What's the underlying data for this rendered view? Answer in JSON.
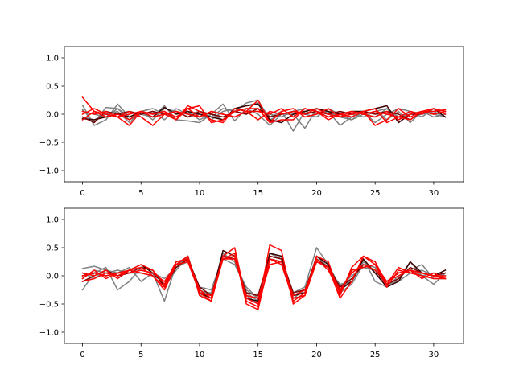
{
  "chart_data": [
    {
      "type": "line",
      "xlim": [
        -1.55,
        32.55
      ],
      "ylim": [
        -1.2,
        1.2
      ],
      "xticks": [
        0,
        5,
        10,
        15,
        20,
        25,
        30
      ],
      "yticks": [
        -1.0,
        -0.5,
        0.0,
        0.5,
        1.0
      ],
      "xtick_labels": [
        "0",
        "5",
        "10",
        "15",
        "20",
        "25",
        "30"
      ],
      "ytick_labels": [
        "−1.0",
        "−0.5",
        "0.0",
        "0.5",
        "1.0"
      ],
      "colors": [
        "#808080",
        "#808080",
        "#808080",
        "#808080",
        "#3a0000",
        "#7a0000",
        "#ff0000",
        "#ff0000",
        "#ff0000",
        "#ff0000"
      ],
      "series": [
        {
          "values": [
            0.16,
            -0.2,
            -0.1,
            0.18,
            -0.05,
            0.05,
            -0.1,
            0.1,
            0.05,
            -0.05,
            0.0,
            -0.1,
            0.05,
            0.1,
            0.15,
            0.2,
            -0.05,
            0.05,
            -0.3,
            0.05,
            0.0,
            0.05,
            -0.2,
            -0.05,
            0.05,
            0.1,
            -0.1,
            0.05,
            -0.15,
            0.05,
            0.0,
            -0.05
          ]
        },
        {
          "values": [
            0.08,
            -0.15,
            0.12,
            0.1,
            -0.1,
            0.0,
            -0.05,
            0.15,
            -0.1,
            -0.12,
            -0.15,
            0.0,
            0.18,
            -0.12,
            0.1,
            0.0,
            -0.2,
            0.0,
            0.0,
            -0.25,
            0.1,
            0.05,
            -0.05,
            -0.1,
            0.05,
            -0.15,
            0.0,
            0.1,
            0.05,
            -0.05,
            0.1,
            -0.05
          ]
        },
        {
          "values": [
            -0.05,
            -0.1,
            0.0,
            0.05,
            -0.15,
            0.05,
            0.1,
            0.0,
            -0.05,
            0.05,
            -0.1,
            0.0,
            -0.1,
            0.05,
            0.2,
            0.25,
            -0.1,
            0.0,
            0.05,
            0.0,
            -0.05,
            0.1,
            0.0,
            -0.1,
            0.0,
            -0.05,
            0.1,
            -0.1,
            0.05,
            0.0,
            0.05,
            -0.05
          ]
        },
        {
          "values": [
            0.05,
            0.0,
            -0.05,
            0.1,
            -0.05,
            0.0,
            0.05,
            -0.1,
            0.1,
            0.0,
            0.05,
            -0.05,
            0.1,
            0.05,
            0.0,
            0.1,
            0.0,
            -0.05,
            0.05,
            0.1,
            0.05,
            -0.05,
            0.05,
            0.0,
            -0.05,
            0.05,
            0.1,
            -0.05,
            0.0,
            0.05,
            -0.05,
            0.0
          ]
        },
        {
          "values": [
            -0.08,
            -0.1,
            -0.05,
            0.0,
            -0.05,
            0.05,
            -0.05,
            0.12,
            0.0,
            0.05,
            0.0,
            -0.05,
            -0.1,
            0.1,
            0.15,
            0.18,
            -0.1,
            -0.15,
            0.0,
            0.05,
            0.1,
            0.05,
            0.0,
            0.05,
            0.05,
            0.1,
            0.15,
            -0.15,
            0.0,
            0.0,
            0.1,
            -0.05
          ]
        },
        {
          "values": [
            -0.05,
            -0.15,
            0.05,
            0.0,
            0.05,
            0.0,
            0.05,
            0.0,
            0.05,
            -0.05,
            0.05,
            0.0,
            -0.05,
            0.05,
            0.0,
            0.1,
            -0.05,
            0.0,
            0.05,
            0.0,
            0.05,
            0.0,
            0.05,
            0.0,
            0.05,
            0.0,
            0.05,
            0.0,
            -0.1,
            0.05,
            0.0,
            0.05
          ]
        },
        {
          "values": [
            0.3,
            0.05,
            0.0,
            -0.05,
            -0.2,
            0.05,
            0.0,
            0.05,
            -0.1,
            0.1,
            0.15,
            -0.15,
            -0.1,
            0.05,
            0.1,
            0.1,
            -0.15,
            -0.1,
            -0.1,
            0.1,
            0.05,
            -0.1,
            0.0,
            -0.05,
            0.05,
            0.1,
            -0.15,
            -0.05,
            -0.1,
            0.05,
            0.05,
            0.08
          ]
        },
        {
          "values": [
            0.0,
            0.1,
            0.0,
            -0.05,
            0.05,
            -0.05,
            -0.2,
            0.0,
            -0.1,
            0.15,
            0.05,
            -0.1,
            -0.15,
            0.1,
            0.05,
            0.25,
            -0.15,
            0.05,
            0.1,
            -0.05,
            0.0,
            0.1,
            -0.05,
            0.0,
            0.05,
            -0.2,
            -0.1,
            0.1,
            -0.05,
            0.05,
            0.1,
            0.0
          ]
        },
        {
          "values": [
            -0.1,
            0.05,
            -0.05,
            0.0,
            -0.1,
            0.05,
            0.0,
            0.05,
            -0.05,
            0.1,
            -0.05,
            0.05,
            0.0,
            -0.05,
            0.05,
            0.05,
            0.0,
            0.1,
            -0.05,
            0.1,
            0.05,
            -0.05,
            0.0,
            0.05,
            0.0,
            -0.05,
            0.05,
            -0.1,
            0.0,
            0.05,
            0.0,
            0.05
          ]
        },
        {
          "values": [
            0.05,
            0.0,
            0.05,
            -0.05,
            0.0,
            0.05,
            -0.05,
            0.0,
            0.05,
            0.0,
            -0.05,
            0.05,
            0.0,
            -0.05,
            0.05,
            -0.1,
            0.05,
            0.0,
            0.05,
            0.0,
            0.1,
            0.0,
            -0.05,
            0.05,
            0.0,
            0.05,
            0.0,
            -0.05,
            0.05,
            0.0,
            0.1,
            0.05
          ]
        }
      ]
    },
    {
      "type": "line",
      "xlim": [
        -1.55,
        32.55
      ],
      "ylim": [
        -1.2,
        1.2
      ],
      "xticks": [
        0,
        5,
        10,
        15,
        20,
        25,
        30
      ],
      "yticks": [
        -1.0,
        -0.5,
        0.0,
        0.5,
        1.0
      ],
      "xtick_labels": [
        "0",
        "5",
        "10",
        "15",
        "20",
        "25",
        "30"
      ],
      "ytick_labels": [
        "−1.0",
        "−0.5",
        "0.0",
        "0.5",
        "1.0"
      ],
      "colors": [
        "#808080",
        "#808080",
        "#808080",
        "#808080",
        "#3a0000",
        "#7a0000",
        "#ff0000",
        "#ff0000",
        "#ff0000",
        "#ff0000"
      ],
      "series": [
        {
          "values": [
            0.13,
            0.17,
            0.1,
            0.05,
            0.15,
            -0.1,
            0.05,
            -0.45,
            0.2,
            0.3,
            -0.2,
            -0.25,
            0.35,
            0.3,
            -0.35,
            -0.5,
            0.4,
            0.3,
            -0.3,
            -0.2,
            0.5,
            0.2,
            -0.2,
            -0.1,
            0.3,
            -0.1,
            -0.2,
            -0.05,
            0.25,
            0.0,
            -0.15,
            0.05
          ]
        },
        {
          "values": [
            -0.25,
            0.05,
            0.15,
            -0.25,
            -0.1,
            0.15,
            0.1,
            -0.2,
            0.1,
            0.35,
            -0.35,
            -0.3,
            0.3,
            0.2,
            -0.2,
            -0.4,
            0.3,
            0.25,
            -0.35,
            -0.3,
            0.35,
            0.15,
            -0.3,
            -0.15,
            0.2,
            0.15,
            -0.2,
            0.0,
            0.1,
            0.2,
            -0.05,
            -0.05
          ]
        },
        {
          "values": [
            -0.05,
            0.1,
            0.05,
            0.1,
            0.05,
            0.05,
            0.0,
            -0.1,
            0.15,
            0.3,
            -0.25,
            -0.35,
            0.4,
            0.25,
            -0.3,
            -0.45,
            0.35,
            0.3,
            -0.4,
            -0.25,
            0.3,
            0.1,
            -0.15,
            -0.1,
            0.25,
            0.05,
            -0.15,
            -0.1,
            0.05,
            0.1,
            0.0,
            -0.05
          ]
        },
        {
          "values": [
            0.05,
            -0.05,
            0.1,
            0.0,
            0.05,
            0.1,
            0.05,
            -0.05,
            0.15,
            0.25,
            -0.3,
            -0.3,
            0.35,
            0.3,
            -0.25,
            -0.4,
            0.3,
            0.25,
            -0.3,
            -0.2,
            0.25,
            0.15,
            -0.2,
            0.0,
            0.15,
            0.1,
            -0.1,
            0.05,
            0.1,
            0.0,
            0.05,
            0.0
          ]
        },
        {
          "values": [
            0.0,
            0.05,
            0.0,
            0.05,
            0.1,
            0.2,
            0.05,
            -0.15,
            0.2,
            0.35,
            -0.3,
            -0.4,
            0.45,
            0.35,
            -0.4,
            -0.45,
            0.4,
            0.35,
            -0.35,
            -0.3,
            0.35,
            0.2,
            -0.25,
            -0.1,
            0.3,
            0.05,
            -0.2,
            -0.1,
            0.25,
            0.05,
            0.0,
            0.1
          ]
        },
        {
          "values": [
            -0.1,
            0.0,
            0.1,
            0.0,
            0.05,
            0.15,
            0.1,
            -0.2,
            0.15,
            0.3,
            -0.2,
            -0.35,
            0.35,
            0.3,
            -0.3,
            -0.35,
            0.35,
            0.3,
            -0.3,
            -0.25,
            0.3,
            0.15,
            -0.2,
            -0.05,
            0.2,
            0.1,
            -0.15,
            -0.05,
            0.15,
            0.05,
            0.0,
            0.05
          ]
        },
        {
          "values": [
            -0.05,
            0.1,
            -0.05,
            0.05,
            0.1,
            0.05,
            0.0,
            -0.25,
            0.2,
            0.35,
            -0.35,
            -0.45,
            0.35,
            0.5,
            -0.45,
            -0.55,
            0.55,
            0.45,
            -0.5,
            -0.35,
            0.25,
            0.15,
            -0.4,
            -0.1,
            0.35,
            0.2,
            -0.2,
            0.1,
            0.05,
            0.0,
            -0.05,
            -0.05
          ]
        },
        {
          "values": [
            0.05,
            0.0,
            0.1,
            -0.05,
            0.1,
            0.2,
            0.1,
            -0.15,
            0.25,
            0.3,
            -0.3,
            -0.45,
            0.3,
            0.4,
            -0.5,
            -0.6,
            0.3,
            0.2,
            -0.4,
            -0.35,
            0.35,
            0.25,
            -0.35,
            0.15,
            0.35,
            0.25,
            -0.15,
            0.15,
            0.05,
            0.05,
            0.0,
            -0.05
          ]
        },
        {
          "values": [
            -0.1,
            -0.05,
            0.05,
            0.0,
            0.1,
            0.15,
            0.0,
            -0.2,
            0.25,
            0.3,
            -0.25,
            -0.4,
            0.3,
            0.35,
            -0.4,
            -0.5,
            0.2,
            0.25,
            -0.45,
            -0.3,
            0.3,
            0.1,
            -0.3,
            0.1,
            0.15,
            0.2,
            -0.1,
            0.05,
            0.1,
            -0.05,
            0.05,
            -0.05
          ]
        },
        {
          "values": [
            0.0,
            0.05,
            0.0,
            0.05,
            0.05,
            0.1,
            0.05,
            -0.1,
            0.2,
            0.25,
            -0.3,
            -0.35,
            0.3,
            0.3,
            -0.35,
            -0.4,
            0.3,
            0.25,
            -0.35,
            -0.25,
            0.25,
            0.15,
            -0.25,
            0.05,
            0.2,
            0.1,
            -0.1,
            0.0,
            0.1,
            0.05,
            0.0,
            0.0
          ]
        }
      ]
    }
  ]
}
